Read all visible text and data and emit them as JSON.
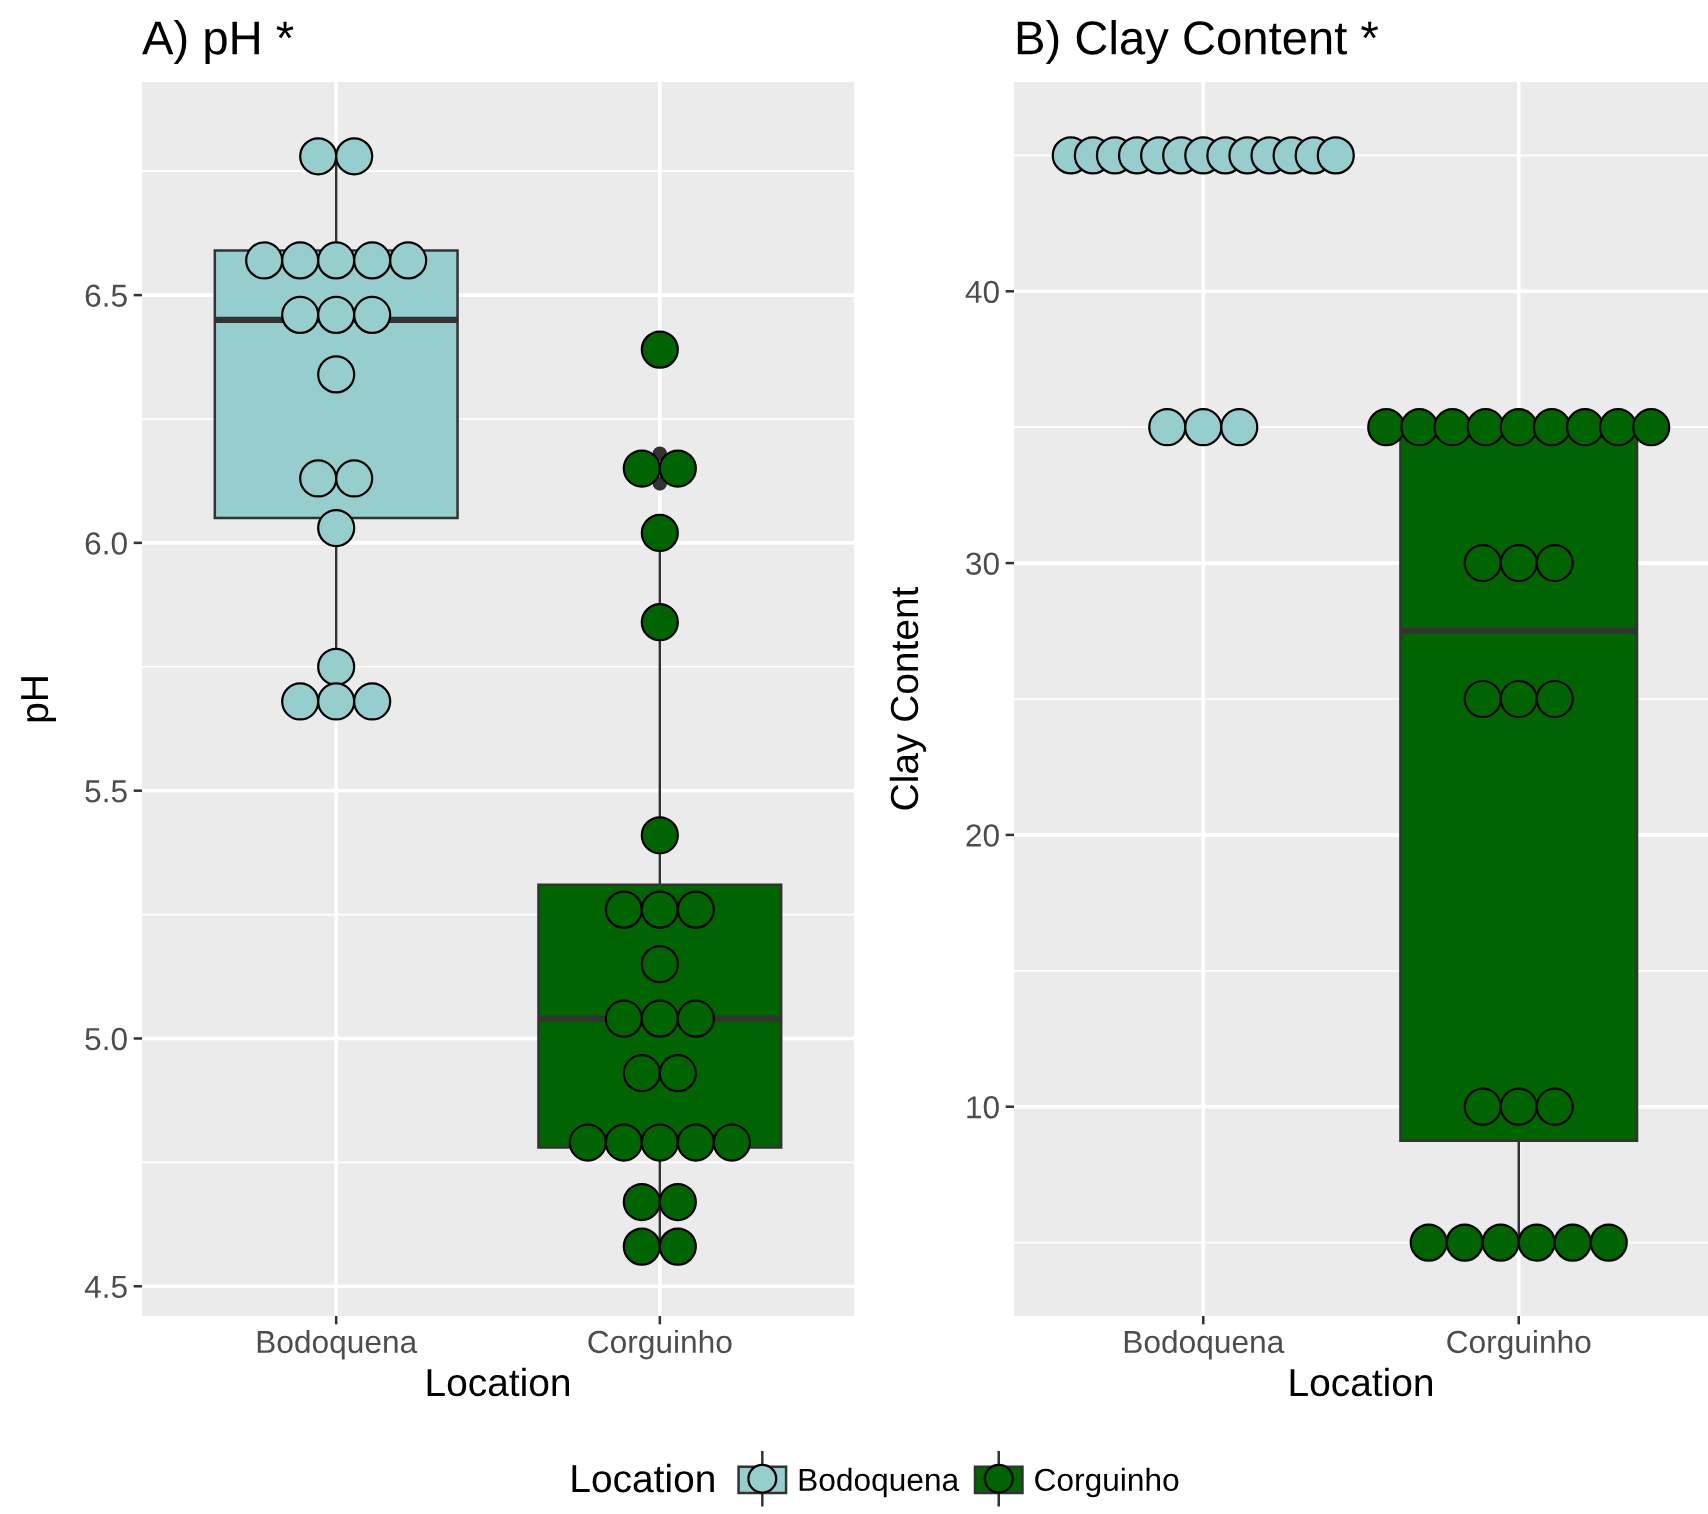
{
  "chart_data": [
    {
      "type": "box",
      "title": "A) pH *",
      "xlabel": "Location",
      "ylabel": "pH",
      "categories": [
        "Bodoquena",
        "Corguinho"
      ],
      "colors": [
        "#96cdcd",
        "#006400"
      ],
      "boxes": [
        {
          "low": 5.68,
          "q1": 6.05,
          "median": 6.45,
          "q3": 6.59,
          "high": 6.78
        },
        {
          "low": 4.58,
          "q1": 4.78,
          "median": 5.04,
          "q3": 5.31,
          "high": 6.02,
          "outliers": [
            6.18,
            6.12
          ]
        }
      ],
      "series": [
        {
          "type": "scatter",
          "name": "Bodoquena",
          "color": "#96cdcd",
          "x": [
            "Bodoquena",
            "Bodoquena",
            "Bodoquena",
            "Bodoquena",
            "Bodoquena",
            "Bodoquena",
            "Bodoquena",
            "Bodoquena",
            "Bodoquena",
            "Bodoquena",
            "Bodoquena",
            "Bodoquena",
            "Bodoquena",
            "Bodoquena",
            "Bodoquena",
            "Bodoquena",
            "Bodoquena",
            "Bodoquena"
          ],
          "values": [
            6.78,
            6.78,
            6.57,
            6.57,
            6.57,
            6.57,
            6.57,
            6.46,
            6.46,
            6.46,
            6.34,
            6.13,
            6.13,
            6.03,
            5.75,
            5.68,
            5.68,
            5.68
          ]
        },
        {
          "type": "scatter",
          "name": "Corguinho",
          "color": "#006400",
          "x": [
            "Corguinho",
            "Corguinho",
            "Corguinho",
            "Corguinho",
            "Corguinho",
            "Corguinho",
            "Corguinho",
            "Corguinho",
            "Corguinho",
            "Corguinho",
            "Corguinho",
            "Corguinho",
            "Corguinho",
            "Corguinho",
            "Corguinho",
            "Corguinho",
            "Corguinho",
            "Corguinho",
            "Corguinho",
            "Corguinho",
            "Corguinho",
            "Corguinho",
            "Corguinho",
            "Corguinho"
          ],
          "values": [
            6.39,
            6.15,
            6.15,
            6.02,
            5.84,
            5.41,
            5.26,
            5.26,
            5.26,
            5.15,
            5.04,
            5.04,
            5.04,
            4.93,
            4.93,
            4.79,
            4.79,
            4.79,
            4.79,
            4.79,
            4.67,
            4.67,
            4.58,
            4.58
          ]
        }
      ],
      "ylim": [
        4.44,
        6.93
      ],
      "yticks": [
        4.5,
        {
          "value": 5,
          "label": "5.0"
        },
        5.5,
        {
          "value": 6,
          "label": "6.0"
        },
        6.5
      ],
      "grid": true,
      "legend": "bottom",
      "legend_title": "Location"
    },
    {
      "type": "box",
      "title": "B) Clay Content *",
      "xlabel": "Location",
      "ylabel": "Clay Content",
      "categories": [
        "Bodoquena",
        "Corguinho"
      ],
      "colors": [
        "#96cdcd",
        "#006400"
      ],
      "boxes": [
        null,
        {
          "low": 5,
          "q1": 8.75,
          "median": 27.5,
          "q3": 35,
          "high": 35
        }
      ],
      "series": [
        {
          "type": "scatter",
          "color": "#96cdcd",
          "x": [
            "Bodoquena",
            "Bodoquena",
            "Bodoquena",
            "Bodoquena",
            "Bodoquena",
            "Bodoquena",
            "Bodoquena",
            "Bodoquena",
            "Bodoquena",
            "Bodoquena",
            "Bodoquena",
            "Bodoquena",
            "Bodoquena",
            "Bodoquena",
            "Bodoquena",
            "Bodoquena"
          ],
          "values": [
            45,
            45,
            45,
            45,
            45,
            45,
            45,
            45,
            45,
            45,
            45,
            45,
            45,
            35,
            35,
            35
          ]
        },
        {
          "type": "scatter",
          "color": "#006400",
          "x": [
            "Corguinho",
            "Corguinho",
            "Corguinho",
            "Corguinho",
            "Corguinho",
            "Corguinho",
            "Corguinho",
            "Corguinho",
            "Corguinho",
            "Corguinho",
            "Corguinho",
            "Corguinho",
            "Corguinho",
            "Corguinho",
            "Corguinho",
            "Corguinho",
            "Corguinho",
            "Corguinho",
            "Corguinho",
            "Corguinho",
            "Corguinho",
            "Corguinho",
            "Corguinho",
            "Corguinho"
          ],
          "values": [
            35,
            35,
            35,
            35,
            35,
            35,
            35,
            35,
            35,
            30,
            30,
            30,
            25,
            25,
            25,
            10,
            10,
            10,
            5,
            5,
            5,
            5,
            5,
            5
          ]
        }
      ],
      "ylim": [
        2.3,
        47.7
      ],
      "yticks": [
        10,
        20,
        30,
        40
      ],
      "grid": true
    }
  ]
}
